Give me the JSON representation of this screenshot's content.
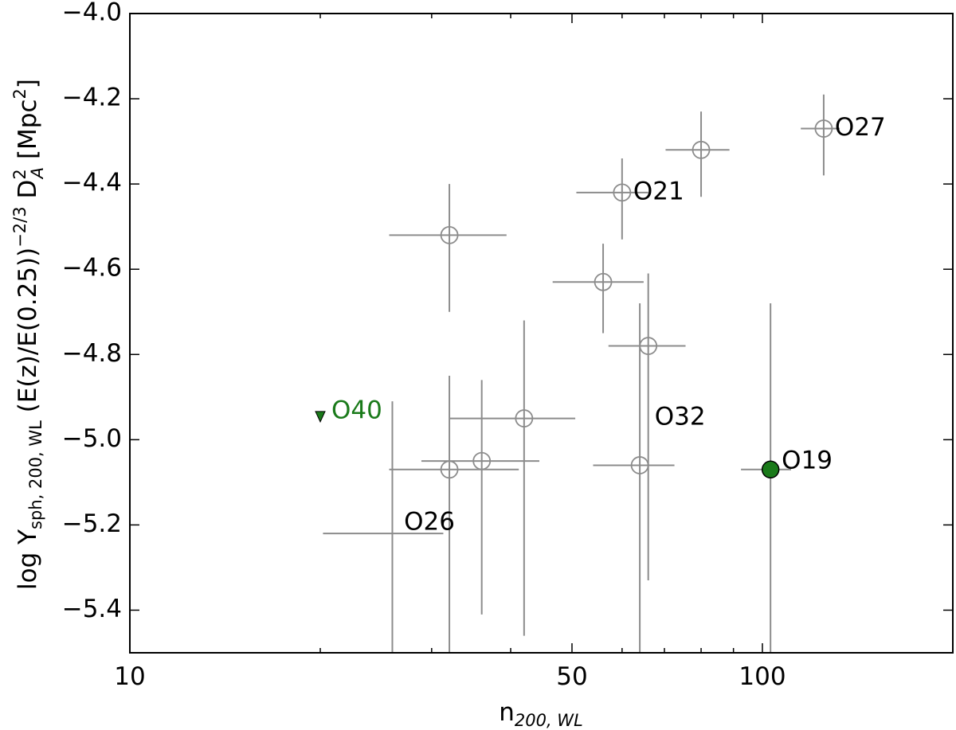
{
  "chart_data": {
    "type": "scatter",
    "title": "",
    "xlabel": {
      "main": "n",
      "sub": "200, WL"
    },
    "ylabel": {
      "prefix": "log Y",
      "sub": "sph, 200, WL",
      "middle": " (E(z)/E(0.25))",
      "sup": "−2/3",
      "da": " D",
      "da_sup": "2",
      "da_sub": "A",
      "unit_open": " [Mpc",
      "unit_sup": "2",
      "unit_close": "]"
    },
    "xscale": "log",
    "xlim": [
      10,
      200
    ],
    "ylim": [
      -5.5,
      -4.0
    ],
    "xticks": [
      {
        "value": 10,
        "label": "10"
      },
      {
        "value": 50,
        "label": "50"
      },
      {
        "value": 100,
        "label": "100"
      }
    ],
    "yticks": [
      {
        "value": -4.0,
        "label": "−4.0"
      },
      {
        "value": -4.2,
        "label": "−4.2"
      },
      {
        "value": -4.4,
        "label": "−4.4"
      },
      {
        "value": -4.6,
        "label": "−4.6"
      },
      {
        "value": -4.8,
        "label": "−4.8"
      },
      {
        "value": -5.0,
        "label": "−5.0"
      },
      {
        "value": -5.2,
        "label": "−5.2"
      },
      {
        "value": -5.4,
        "label": "−5.4"
      }
    ],
    "grid": false,
    "colors": {
      "open": "#8c8c8c",
      "highlight": "#1a7a1a",
      "label_text": "#000000",
      "o40_text": "#1a7a1a"
    },
    "points": [
      {
        "x": 32.0,
        "y": -4.52,
        "xerr": [
          6.3,
          7.4
        ],
        "yerr": [
          0.18,
          0.12
        ],
        "style": "open"
      },
      {
        "x": 60.0,
        "y": -4.42,
        "xerr": [
          9.2,
          6.0
        ],
        "yerr": [
          0.11,
          0.08
        ],
        "style": "open",
        "label": "O21"
      },
      {
        "x": 80.0,
        "y": -4.32,
        "xerr": [
          9.7,
          8.7
        ],
        "yerr": [
          0.11,
          0.09
        ],
        "style": "open"
      },
      {
        "x": 125.0,
        "y": -4.27,
        "xerr": [
          10.0,
          7.5
        ],
        "yerr": [
          0.11,
          0.08
        ],
        "style": "open",
        "label": "O27"
      },
      {
        "x": 56.0,
        "y": -4.63,
        "xerr": [
          9.4,
          8.9
        ],
        "yerr": [
          0.12,
          0.09
        ],
        "style": "open"
      },
      {
        "x": 66.0,
        "y": -4.78,
        "xerr": [
          8.9,
          9.6
        ],
        "yerr": [
          0.55,
          0.17
        ],
        "style": "open"
      },
      {
        "x": 42.0,
        "y": -4.95,
        "xerr": [
          10.0,
          8.6
        ],
        "yerr": [
          0.51,
          0.23
        ],
        "style": "open"
      },
      {
        "x": 36.0,
        "y": -5.05,
        "xerr": [
          7.1,
          8.4
        ],
        "yerr": [
          0.36,
          0.19
        ],
        "style": "open"
      },
      {
        "x": 32.0,
        "y": -5.07,
        "xerr": [
          6.3,
          9.2
        ],
        "yerr": [
          0.43,
          0.22
        ],
        "style": "open"
      },
      {
        "x": 64.0,
        "y": -5.06,
        "xerr": [
          10.0,
          8.6
        ],
        "yerr": [
          0.44,
          0.38
        ],
        "style": "open"
      },
      {
        "x": 26.0,
        "y": -5.22,
        "xerr": [
          5.8,
          5.3
        ],
        "yerr": [
          0.28,
          0.31
        ],
        "style": "open_nomarker"
      },
      {
        "x": 103.0,
        "y": -5.07,
        "xerr": [
          10.5,
          8.0
        ],
        "yerr": [
          0.43,
          0.39
        ],
        "style": "filled"
      },
      {
        "x": 20.0,
        "y": -4.945,
        "style": "upper_limit"
      }
    ],
    "annotations": [
      {
        "text": "O21",
        "x": 60.0,
        "y": -4.42,
        "dx": 14,
        "dy": 0
      },
      {
        "text": "O27",
        "x": 125.0,
        "y": -4.27,
        "dx": 14,
        "dy": 0
      },
      {
        "text": "O32",
        "x": 66.0,
        "y": -4.96,
        "dx": 8,
        "dy": -6
      },
      {
        "text": "O26",
        "x": 32.0,
        "y": -5.22,
        "dx": -57,
        "dy": -13
      },
      {
        "text": "O19",
        "x": 103.0,
        "y": -5.07,
        "dx": 14,
        "dy": -10
      },
      {
        "text": "O40",
        "x": 20.0,
        "y": -4.945,
        "dx": 14,
        "dy": -6,
        "color": "#1a7a1a"
      }
    ]
  }
}
